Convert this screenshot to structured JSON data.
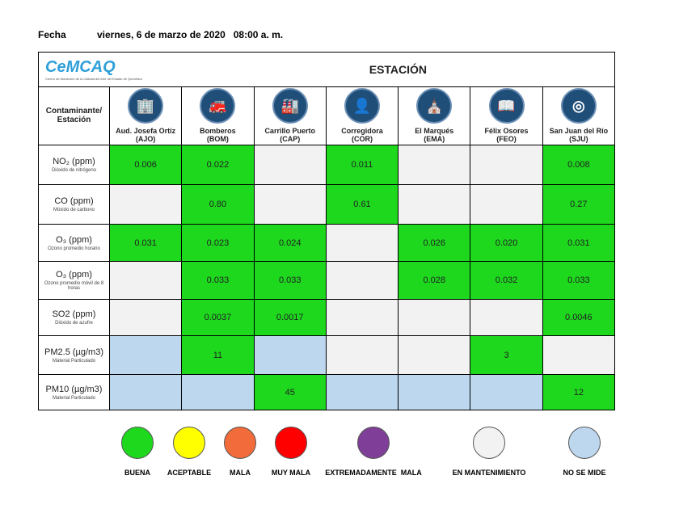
{
  "header": {
    "fecha_label": "Fecha",
    "fecha_value": "viernes, 6 de marzo de 2020   08:00 a. m."
  },
  "logo": {
    "text": "CeMCAQ",
    "subtitle": "Centro de Monitoreo de la Calidad del Aire del Estado de Querétaro"
  },
  "table": {
    "title": "ESTACIÓN",
    "corner": "Contaminante/ Estación",
    "stations": [
      {
        "name": "Aud. Josefa Ortíz",
        "code": "(AJO)",
        "icon": "building-icon"
      },
      {
        "name": "Bomberos",
        "code": "(BOM)",
        "icon": "fire-truck-icon"
      },
      {
        "name": "Carrillo Puerto",
        "code": "(CAP)",
        "icon": "factory-icon"
      },
      {
        "name": "Corregidora",
        "code": "(COR)",
        "icon": "person-head-icon"
      },
      {
        "name": "El Marqués",
        "code": "(EMA)",
        "icon": "church-icon"
      },
      {
        "name": "Félix Osores",
        "code": "(FEO)",
        "icon": "book-icon"
      },
      {
        "name": "San Juan del Río",
        "code": "(SJU)",
        "icon": "seal-icon"
      }
    ],
    "rows": [
      {
        "pollutant": "NO₂ (ppm)",
        "desc": "Dióxido de nitrógeno",
        "cells": [
          [
            "0.006",
            "g"
          ],
          [
            "0.022",
            "g"
          ],
          [
            "",
            "n"
          ],
          [
            "0.011",
            "g"
          ],
          [
            "",
            "n"
          ],
          [
            "",
            "n"
          ],
          [
            "0.008",
            "g"
          ]
        ]
      },
      {
        "pollutant": "CO (ppm)",
        "desc": "Móxido de carbono",
        "cells": [
          [
            "",
            "n"
          ],
          [
            "0.80",
            "g"
          ],
          [
            "",
            "n"
          ],
          [
            "0.61",
            "g"
          ],
          [
            "",
            "n"
          ],
          [
            "",
            "n"
          ],
          [
            "0.27",
            "g"
          ]
        ]
      },
      {
        "pollutant": "O₃ (ppm)",
        "desc": "Ozono promedio horario",
        "cells": [
          [
            "0.031",
            "g"
          ],
          [
            "0.023",
            "g"
          ],
          [
            "0.024",
            "g"
          ],
          [
            "",
            "n"
          ],
          [
            "0.026",
            "g"
          ],
          [
            "0.020",
            "g"
          ],
          [
            "0.031",
            "g"
          ]
        ]
      },
      {
        "pollutant": "O₃ (ppm)",
        "desc": "Ozono promedio móvil de 8 horas",
        "cells": [
          [
            "",
            "n"
          ],
          [
            "0.033",
            "g"
          ],
          [
            "0.033",
            "g"
          ],
          [
            "",
            "n"
          ],
          [
            "0.028",
            "g"
          ],
          [
            "0.032",
            "g"
          ],
          [
            "0.033",
            "g"
          ]
        ]
      },
      {
        "pollutant": "SO2 (ppm)",
        "desc": "Dióxido de azufre",
        "cells": [
          [
            "",
            "n"
          ],
          [
            "0.0037",
            "g"
          ],
          [
            "0.0017",
            "g"
          ],
          [
            "",
            "n"
          ],
          [
            "",
            "n"
          ],
          [
            "",
            "n"
          ],
          [
            "0.0046",
            "g"
          ]
        ]
      },
      {
        "pollutant": "PM2.5 (µg/m3)",
        "desc": "Material Particulado",
        "cells": [
          [
            "",
            "b"
          ],
          [
            "11",
            "g"
          ],
          [
            "",
            "b"
          ],
          [
            "",
            "n"
          ],
          [
            "",
            "n"
          ],
          [
            "3",
            "g"
          ],
          [
            "",
            "n"
          ]
        ]
      },
      {
        "pollutant": "PM10 (µg/m3)",
        "desc": "Material Particulado",
        "cells": [
          [
            "",
            "b"
          ],
          [
            "",
            "b"
          ],
          [
            "45",
            "g"
          ],
          [
            "",
            "b"
          ],
          [
            "",
            "b"
          ],
          [
            "",
            "b"
          ],
          [
            "12",
            "g"
          ]
        ]
      }
    ]
  },
  "legend": [
    {
      "label": "BUENA",
      "color": "#1ed81e"
    },
    {
      "label": "ACEPTABLE",
      "color": "#ffff00"
    },
    {
      "label": "MALA",
      "color": "#f26b3a"
    },
    {
      "label": "MUY MALA",
      "color": "#ff0000"
    },
    {
      "label": "EXTREMADAMENTE  MALA",
      "color": "#7f3f98"
    },
    {
      "label": "EN MANTENIMIENTO",
      "color": "#f2f2f2"
    },
    {
      "label": "NO SE MIDE",
      "color": "#bdd7ee"
    }
  ]
}
